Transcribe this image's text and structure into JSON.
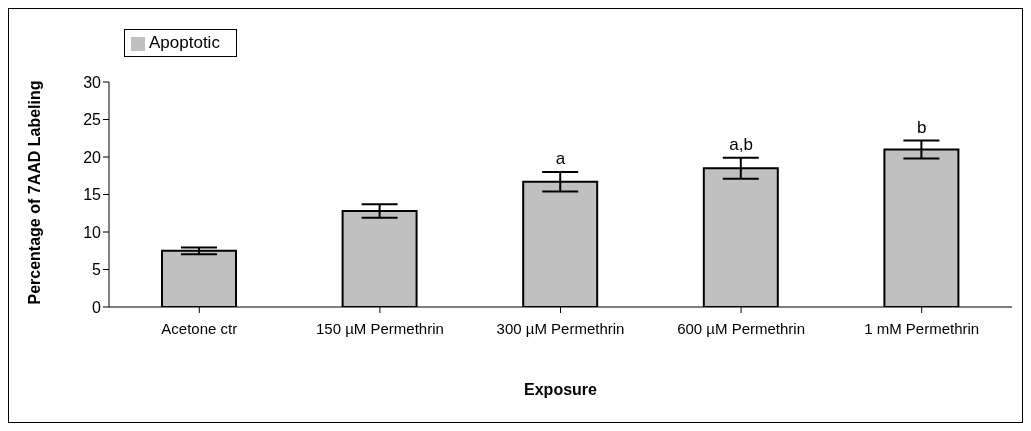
{
  "chart_data": {
    "type": "bar",
    "xlabel": "Exposure",
    "ylabel": "Percentage of 7AAD Labeling",
    "categories": [
      "Acetone ctr",
      "150 µM Permethrin",
      "300 µM Permethrin",
      "600 µM Permethrin",
      "1 mM Permethrin"
    ],
    "series": [
      {
        "name": "Apoptotic",
        "color": "#c0c0c0",
        "values": [
          7.5,
          12.8,
          16.7,
          18.5,
          21.0
        ],
        "errors": [
          0.45,
          0.9,
          1.3,
          1.4,
          1.2
        ]
      }
    ],
    "ylim": [
      0,
      30
    ],
    "yticks": [
      0,
      5,
      10,
      15,
      20,
      25,
      30
    ],
    "grid": false,
    "legend": "top left",
    "annotations": [
      {
        "text": "a",
        "x": "300 µM Permethrin",
        "y": 18.0
      },
      {
        "text": "a,b",
        "x": "600 µM Permethrin",
        "y": 19.9
      },
      {
        "text": "b",
        "x": "1 mM Permethrin",
        "y": 22.2
      }
    ]
  }
}
